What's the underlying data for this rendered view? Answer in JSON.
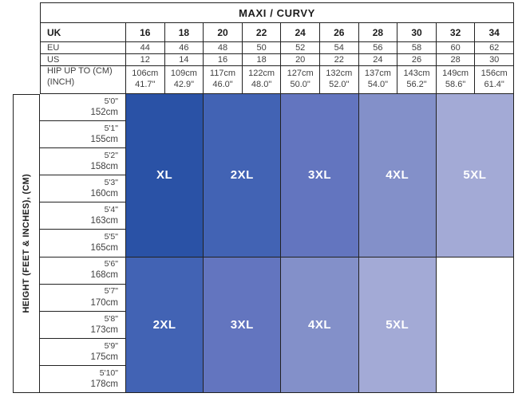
{
  "header": {
    "title": "MAXI / CURVY"
  },
  "sizes": {
    "uk": {
      "label": "UK",
      "values": [
        "16",
        "18",
        "20",
        "22",
        "24",
        "26",
        "28",
        "30",
        "32",
        "34"
      ]
    },
    "eu": {
      "label": "EU",
      "values": [
        "44",
        "46",
        "48",
        "50",
        "52",
        "54",
        "56",
        "58",
        "60",
        "62"
      ]
    },
    "us": {
      "label": "US",
      "values": [
        "12",
        "14",
        "16",
        "18",
        "20",
        "22",
        "24",
        "26",
        "28",
        "30"
      ]
    }
  },
  "hip": {
    "label_line1": "HIP UP TO (CM)",
    "label_line2": "(INCH)",
    "values": [
      {
        "cm": "106cm",
        "inch": "41.7\""
      },
      {
        "cm": "109cm",
        "inch": "42.9\""
      },
      {
        "cm": "117cm",
        "inch": "46.0\""
      },
      {
        "cm": "122cm",
        "inch": "48.0\""
      },
      {
        "cm": "127cm",
        "inch": "50.0\""
      },
      {
        "cm": "132cm",
        "inch": "52.0\""
      },
      {
        "cm": "137cm",
        "inch": "54.0\""
      },
      {
        "cm": "143cm",
        "inch": "56.2\""
      },
      {
        "cm": "149cm",
        "inch": "58.6\""
      },
      {
        "cm": "156cm",
        "inch": "61.4\""
      }
    ]
  },
  "height_axis": {
    "label": "HEIGHT (FEET & INCHES), (CM)",
    "rows": [
      {
        "ftin": "5'0\"",
        "cm": "152cm"
      },
      {
        "ftin": "5'1\"",
        "cm": "155cm"
      },
      {
        "ftin": "5'2\"",
        "cm": "158cm"
      },
      {
        "ftin": "5'3\"",
        "cm": "160cm"
      },
      {
        "ftin": "5'4\"",
        "cm": "163cm"
      },
      {
        "ftin": "5'5\"",
        "cm": "165cm"
      },
      {
        "ftin": "5'6\"",
        "cm": "168cm"
      },
      {
        "ftin": "5'7\"",
        "cm": "170cm"
      },
      {
        "ftin": "5'8\"",
        "cm": "173cm"
      },
      {
        "ftin": "5'9\"",
        "cm": "175cm"
      },
      {
        "ftin": "5'10\"",
        "cm": "178cm"
      }
    ]
  },
  "blocks": {
    "upper": [
      {
        "label": "XL",
        "color": "#2a52a6"
      },
      {
        "label": "2XL",
        "color": "#4263b4"
      },
      {
        "label": "3XL",
        "color": "#6375bf"
      },
      {
        "label": "4XL",
        "color": "#8390c9"
      },
      {
        "label": "5XL",
        "color": "#a3aad6"
      }
    ],
    "lower": [
      {
        "label": "2XL",
        "color": "#4263b4"
      },
      {
        "label": "3XL",
        "color": "#6375bf"
      },
      {
        "label": "4XL",
        "color": "#8390c9"
      },
      {
        "label": "5XL",
        "color": "#a3aad6"
      },
      {
        "label": "",
        "color": "#ffffff"
      }
    ]
  },
  "chart_data": {
    "type": "table",
    "title": "MAXI / CURVY",
    "column_headers": {
      "UK": [
        "16",
        "18",
        "20",
        "22",
        "24",
        "26",
        "28",
        "30",
        "32",
        "34"
      ],
      "EU": [
        "44",
        "46",
        "48",
        "50",
        "52",
        "54",
        "56",
        "58",
        "60",
        "62"
      ],
      "US": [
        "12",
        "14",
        "16",
        "18",
        "20",
        "22",
        "24",
        "26",
        "28",
        "30"
      ],
      "HIP UP TO (CM) (INCH)": [
        "106cm 41.7\"",
        "109cm 42.9\"",
        "117cm 46.0\"",
        "122cm 48.0\"",
        "127cm 50.0\"",
        "132cm 52.0\"",
        "137cm 54.0\"",
        "143cm 56.2\"",
        "149cm 58.6\"",
        "156cm 61.4\""
      ]
    },
    "row_axis_label": "HEIGHT (FEET & INCHES), (CM)",
    "row_headers": [
      "5'0\" 152cm",
      "5'1\" 155cm",
      "5'2\" 158cm",
      "5'3\" 160cm",
      "5'4\" 163cm",
      "5'5\" 165cm",
      "5'6\" 168cm",
      "5'7\" 170cm",
      "5'8\" 173cm",
      "5'9\" 175cm",
      "5'10\" 178cm"
    ],
    "size_regions": [
      {
        "size": "XL",
        "uk_columns": [
          "16",
          "18"
        ],
        "height_range": "5'0\"-5'5\"",
        "color": "#2a52a6"
      },
      {
        "size": "2XL",
        "uk_columns": [
          "20",
          "22"
        ],
        "height_range": "5'0\"-5'5\"",
        "color": "#4263b4"
      },
      {
        "size": "3XL",
        "uk_columns": [
          "24",
          "26"
        ],
        "height_range": "5'0\"-5'5\"",
        "color": "#6375bf"
      },
      {
        "size": "4XL",
        "uk_columns": [
          "28",
          "30"
        ],
        "height_range": "5'0\"-5'5\"",
        "color": "#8390c9"
      },
      {
        "size": "5XL",
        "uk_columns": [
          "32",
          "34"
        ],
        "height_range": "5'0\"-5'5\"",
        "color": "#a3aad6"
      },
      {
        "size": "2XL",
        "uk_columns": [
          "16",
          "18"
        ],
        "height_range": "5'6\"-5'10\"",
        "color": "#4263b4"
      },
      {
        "size": "3XL",
        "uk_columns": [
          "20",
          "22"
        ],
        "height_range": "5'6\"-5'10\"",
        "color": "#6375bf"
      },
      {
        "size": "4XL",
        "uk_columns": [
          "24",
          "26"
        ],
        "height_range": "5'6\"-5'10\"",
        "color": "#8390c9"
      },
      {
        "size": "5XL",
        "uk_columns": [
          "28",
          "30"
        ],
        "height_range": "5'6\"-5'10\"",
        "color": "#a3aad6"
      },
      {
        "size": "",
        "uk_columns": [
          "32",
          "34"
        ],
        "height_range": "5'6\"-5'10\"",
        "color": "#ffffff"
      }
    ]
  }
}
